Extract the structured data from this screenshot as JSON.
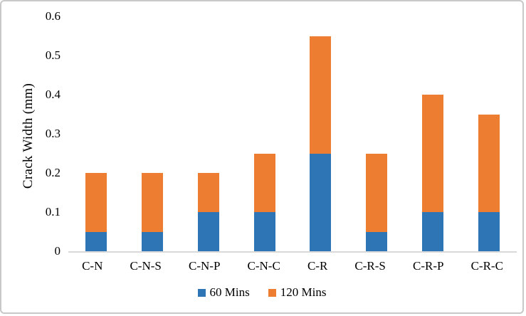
{
  "figure": {
    "background": "#ffffff",
    "border_color": "#c8c8c8",
    "axis_line_color": "#d9d9d9"
  },
  "chart_data": {
    "type": "bar",
    "stacked": true,
    "title": "",
    "xlabel": "",
    "ylabel": "Crack Width (mm)",
    "categories": [
      "C-N",
      "C-N-S",
      "C-N-P",
      "C-N-C",
      "C-R",
      "C-R-S",
      "C-R-P",
      "C-R-C"
    ],
    "series": [
      {
        "name": "60 Mins",
        "color": "#2e75b6",
        "values": [
          0.05,
          0.05,
          0.1,
          0.1,
          0.25,
          0.05,
          0.1,
          0.1
        ]
      },
      {
        "name": "120 Mins",
        "color": "#ed7d31",
        "values": [
          0.15,
          0.15,
          0.1,
          0.15,
          0.3,
          0.2,
          0.3,
          0.25
        ]
      }
    ],
    "stack_totals": [
      0.2,
      0.2,
      0.2,
      0.25,
      0.55,
      0.25,
      0.4,
      0.35
    ],
    "ylim": [
      0,
      0.6
    ],
    "yticks": [
      0,
      0.1,
      0.2,
      0.3,
      0.4,
      0.5,
      0.6
    ],
    "ytick_labels": [
      "0",
      "0.1",
      "0.2",
      "0.3",
      "0.4",
      "0.5",
      "0.6"
    ],
    "grid": false,
    "legend_position": "bottom"
  }
}
